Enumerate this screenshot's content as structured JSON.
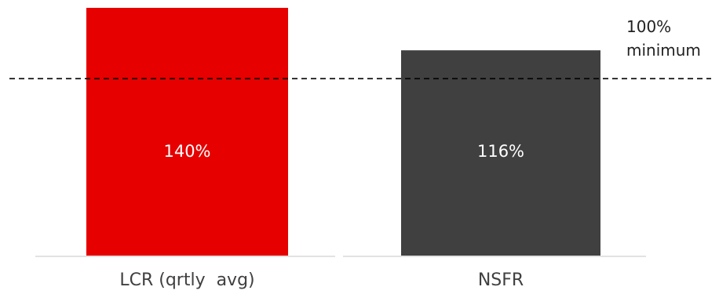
{
  "chart_data": {
    "type": "bar",
    "title": "",
    "xlabel": "",
    "ylabel": "",
    "categories": [
      "LCR (qrtly  avg)",
      "NSFR"
    ],
    "values": [
      140,
      116
    ],
    "value_labels": [
      "140%",
      "116%"
    ],
    "bar_colors": [
      "#e60000",
      "#404040"
    ],
    "ylim": [
      0,
      140
    ],
    "grid": false,
    "reference_line": {
      "value": 100,
      "style": "dashed",
      "color": "#000000",
      "label_line1": "100%",
      "label_line2": "minimum"
    },
    "baseline_color": "#d9d9d9"
  }
}
